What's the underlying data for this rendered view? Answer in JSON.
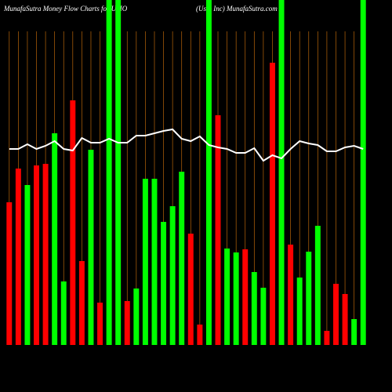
{
  "chart_data": {
    "type": "bar",
    "title": "MunafaSutra  Money Flow  Charts for USIO",
    "subtitle": "(Usio  Inc) MunafaSutra.com",
    "categories": [
      null,
      null,
      null,
      null,
      null,
      null,
      null,
      null,
      null,
      null,
      null,
      null,
      null,
      null,
      null,
      null,
      null,
      null,
      null,
      null,
      null,
      null,
      null,
      null,
      null,
      null,
      null,
      null,
      null,
      null,
      null,
      null,
      null,
      null,
      null,
      null,
      null,
      null,
      null,
      null
    ],
    "values": [
      182,
      225,
      204,
      229,
      231,
      270,
      81,
      312,
      107,
      249,
      54,
      440,
      440,
      56,
      72,
      212,
      212,
      157,
      177,
      221,
      142,
      26,
      440,
      293,
      123,
      118,
      122,
      93,
      73,
      360,
      440,
      128,
      86,
      119,
      152,
      18,
      78,
      65,
      33,
      440
    ],
    "colors": [
      "#ff0000",
      "#ff0000",
      "#00ff00",
      "#ff0000",
      "#ff0000",
      "#00ff00",
      "#00ff00",
      "#ff0000",
      "#ff0000",
      "#00ff00",
      "#ff0000",
      "#00ff00",
      "#00ff00",
      "#ff0000",
      "#00ff00",
      "#00ff00",
      "#00ff00",
      "#00ff00",
      "#00ff00",
      "#00ff00",
      "#ff0000",
      "#ff0000",
      "#00ff00",
      "#ff0000",
      "#00ff00",
      "#00ff00",
      "#ff0000",
      "#00ff00",
      "#00ff00",
      "#ff0000",
      "#00ff00",
      "#ff0000",
      "#00ff00",
      "#00ff00",
      "#00ff00",
      "#ff0000",
      "#ff0000",
      "#ff0000",
      "#00ff00",
      "#00ff00"
    ],
    "line": {
      "color": "#ffffff",
      "values": [
        250,
        250,
        256,
        250,
        254,
        260,
        250,
        248,
        264,
        258,
        258,
        263,
        258,
        258,
        267,
        267,
        270,
        273,
        275,
        263,
        260,
        266,
        255,
        252,
        250,
        245,
        245,
        251,
        235,
        242,
        238,
        250,
        260,
        257,
        255,
        247,
        247,
        252,
        254,
        250
      ]
    },
    "gridline_color": "#b8650a",
    "ylim": [
      0,
      440
    ]
  }
}
